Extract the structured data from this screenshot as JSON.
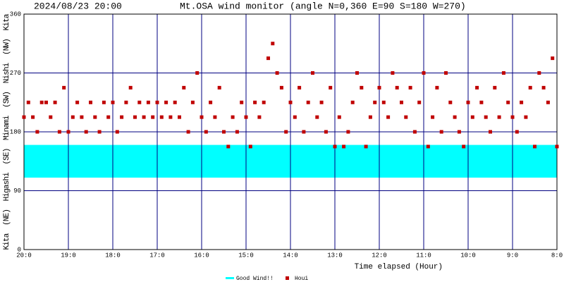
{
  "chart_data": {
    "type": "scatter",
    "timestamp": "2024/08/23 20:00",
    "title": "Mt.OSA wind monitor (angle N=0,360 E=90 S=180 W=270)",
    "y_label": "Kita  (NE)  Higashi  (SE)  Minami  (SW)  Nishi  (NW)  Kita",
    "x_label": "Time elapsed (Hour)",
    "xlim": [
      0,
      12
    ],
    "ylim": [
      0,
      360
    ],
    "xticks": [
      {
        "value": 0,
        "label": "20:0"
      },
      {
        "value": 1,
        "label": "19:0"
      },
      {
        "value": 2,
        "label": "18:0"
      },
      {
        "value": 3,
        "label": "17:0"
      },
      {
        "value": 4,
        "label": "16:0"
      },
      {
        "value": 5,
        "label": "15:0"
      },
      {
        "value": 6,
        "label": "14:0"
      },
      {
        "value": 7,
        "label": "13:0"
      },
      {
        "value": 8,
        "label": "12:0"
      },
      {
        "value": 9,
        "label": "11:0"
      },
      {
        "value": 10,
        "label": "10:0"
      },
      {
        "value": 11,
        "label": "9:0"
      },
      {
        "value": 12,
        "label": "8:0"
      }
    ],
    "yticks": [
      0,
      90,
      180,
      270,
      360
    ],
    "grid": true,
    "x": [
      0,
      0.1,
      0.2,
      0.3,
      0.4,
      0.5,
      0.6,
      0.7,
      0.8,
      0.9,
      1,
      1.1,
      1.2,
      1.3,
      1.4,
      1.5,
      1.6,
      1.7,
      1.8,
      1.9,
      2,
      2.1,
      2.2,
      2.3,
      2.4,
      2.5,
      2.6,
      2.7,
      2.8,
      2.9,
      3,
      3.1,
      3.2,
      3.3,
      3.4,
      3.5,
      3.6,
      3.7,
      3.8,
      3.9,
      4,
      4.1,
      4.2,
      4.3,
      4.4,
      4.5,
      4.6,
      4.7,
      4.8,
      4.9,
      5,
      5.1,
      5.2,
      5.3,
      5.4,
      5.5,
      5.6,
      5.7,
      5.8,
      5.9,
      6,
      6.1,
      6.2,
      6.3,
      6.4,
      6.5,
      6.6,
      6.7,
      6.8,
      6.9,
      7,
      7.1,
      7.2,
      7.3,
      7.4,
      7.5,
      7.6,
      7.7,
      7.8,
      7.9,
      8,
      8.1,
      8.2,
      8.3,
      8.4,
      8.5,
      8.6,
      8.7,
      8.8,
      8.9,
      9,
      9.1,
      9.2,
      9.3,
      9.4,
      9.5,
      9.6,
      9.7,
      9.8,
      9.9,
      10,
      10.1,
      10.2,
      10.3,
      10.4,
      10.5,
      10.6,
      10.7,
      10.8,
      10.9,
      11,
      11.1,
      11.2,
      11.3,
      11.4,
      11.5,
      11.6,
      11.7,
      11.8,
      11.9,
      12
    ],
    "series": [
      {
        "name": "Good Wind!!",
        "color": "#00ffff",
        "range": [
          110,
          160
        ]
      },
      {
        "name": "Houi",
        "color": "#c00000",
        "values": [
          202.5,
          225,
          202.5,
          180,
          225,
          225,
          202.5,
          225,
          180,
          247.5,
          180,
          202.5,
          225,
          202.5,
          180,
          225,
          202.5,
          180,
          225,
          202.5,
          225,
          180,
          202.5,
          225,
          247.5,
          202.5,
          225,
          202.5,
          225,
          202.5,
          225,
          202.5,
          225,
          202.5,
          225,
          202.5,
          247.5,
          180,
          225,
          270,
          202.5,
          180,
          225,
          202.5,
          247.5,
          180,
          157.5,
          202.5,
          180,
          225,
          202.5,
          157.5,
          225,
          202.5,
          225,
          292.5,
          315,
          270,
          247.5,
          180,
          225,
          202.5,
          247.5,
          180,
          225,
          270,
          202.5,
          225,
          180,
          247.5,
          157.5,
          202.5,
          157.5,
          180,
          225,
          270,
          247.5,
          157.5,
          202.5,
          225,
          247.5,
          225,
          202.5,
          270,
          247.5,
          225,
          202.5,
          247.5,
          180,
          225,
          270,
          157.5,
          202.5,
          247.5,
          180,
          270,
          225,
          202.5,
          180,
          157.5,
          225,
          202.5,
          247.5,
          225,
          202.5,
          180,
          247.5,
          202.5,
          270,
          225,
          202.5,
          180,
          225,
          202.5,
          247.5,
          157.5,
          270,
          247.5,
          225,
          292.5,
          157.5
        ]
      }
    ]
  }
}
